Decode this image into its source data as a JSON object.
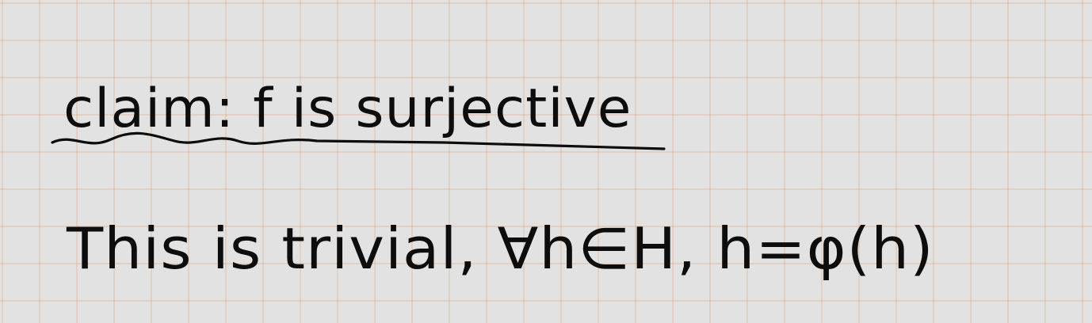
{
  "note": {
    "claim_line": "claim: f is surjective",
    "proof_line": "This is trivial, ∀h∈H, h=φ(h)"
  },
  "colors": {
    "paper": "#e2e2e2",
    "grid": "#e0a078",
    "ink": "#0d0d0d"
  }
}
